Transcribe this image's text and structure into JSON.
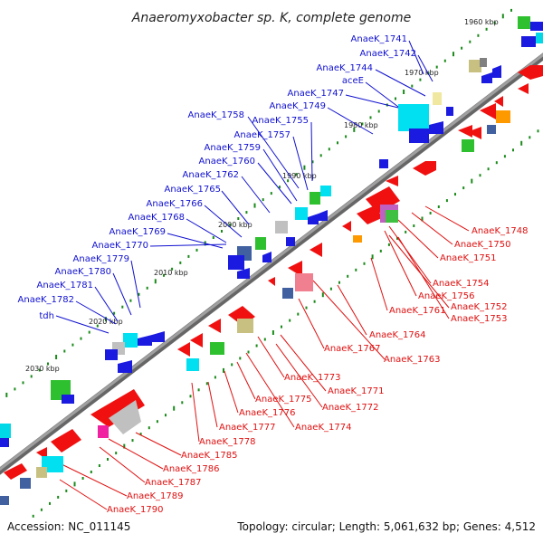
{
  "title": "Anaeromyxobacter sp. K, complete genome",
  "footer": {
    "accession": "Accession: NC_011145",
    "topology": "Topology: circular; Length: 5,061,632 bp; Genes: 4,512"
  },
  "colors": {
    "plus_strand_label": "#1010d0",
    "minus_strand_label": "#e01010",
    "backbone": "#808080",
    "kbp_marker": "#1a8a1a"
  },
  "kbp_ticks": [
    "1960 kbp",
    "1970 kbp",
    "1980 kbp",
    "1990 kbp",
    "2000 kbp",
    "2010 kbp",
    "2020 kbp",
    "2030 kbp"
  ],
  "blue_labels": [
    "AnaeK_1741",
    "AnaeK_1742",
    "AnaeK_1744",
    "aceE",
    "AnaeK_1747",
    "AnaeK_1749",
    "AnaeK_1758",
    "AnaeK_1755",
    "AnaeK_1757",
    "AnaeK_1759",
    "AnaeK_1760",
    "AnaeK_1762",
    "AnaeK_1765",
    "AnaeK_1766",
    "AnaeK_1768",
    "AnaeK_1769",
    "AnaeK_1770",
    "AnaeK_1779",
    "AnaeK_1780",
    "AnaeK_1781",
    "AnaeK_1782",
    "tdh"
  ],
  "red_labels": [
    "AnaeK_1748",
    "AnaeK_1750",
    "AnaeK_1751",
    "AnaeK_1754",
    "AnaeK_1756",
    "AnaeK_1752",
    "AnaeK_1761",
    "AnaeK_1753",
    "AnaeK_1764",
    "AnaeK_1767",
    "AnaeK_1763",
    "AnaeK_1773",
    "AnaeK_1771",
    "AnaeK_1775",
    "AnaeK_1772",
    "AnaeK_1776",
    "AnaeK_1774",
    "AnaeK_1777",
    "AnaeK_1778",
    "AnaeK_1785",
    "AnaeK_1786",
    "AnaeK_1787",
    "AnaeK_1789",
    "AnaeK_1790"
  ]
}
